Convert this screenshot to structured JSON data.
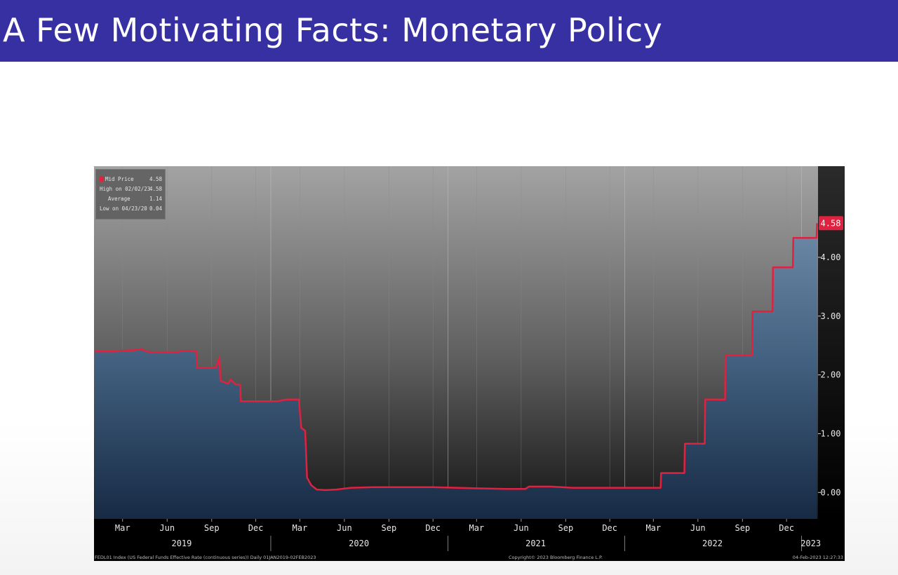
{
  "slide": {
    "title": "A Few Motivating Facts: Monetary Policy",
    "title_bar_color": "#3730a3"
  },
  "chart_data": {
    "type": "area",
    "series": [
      {
        "name": "Mid Price",
        "color": "#e0213f",
        "fill": "#4a6a8a",
        "points": [
          [
            "2019-01-02",
            2.4
          ],
          [
            "2019-02-15",
            2.4
          ],
          [
            "2019-03-01",
            2.41
          ],
          [
            "2019-03-25",
            2.42
          ],
          [
            "2019-04-01",
            2.43
          ],
          [
            "2019-04-10",
            2.44
          ],
          [
            "2019-04-15",
            2.41
          ],
          [
            "2019-05-01",
            2.38
          ],
          [
            "2019-05-20",
            2.38
          ],
          [
            "2019-06-01",
            2.39
          ],
          [
            "2019-06-20",
            2.38
          ],
          [
            "2019-07-01",
            2.41
          ],
          [
            "2019-07-31",
            2.4
          ],
          [
            "2019-08-02",
            2.12
          ],
          [
            "2019-08-30",
            2.12
          ],
          [
            "2019-09-10",
            2.13
          ],
          [
            "2019-09-17",
            2.3
          ],
          [
            "2019-09-19",
            1.9
          ],
          [
            "2019-10-05",
            1.85
          ],
          [
            "2019-10-10",
            1.92
          ],
          [
            "2019-10-20",
            1.84
          ],
          [
            "2019-10-30",
            1.83
          ],
          [
            "2019-10-31",
            1.55
          ],
          [
            "2019-12-01",
            1.55
          ],
          [
            "2019-12-31",
            1.55
          ],
          [
            "2020-01-15",
            1.55
          ],
          [
            "2020-02-01",
            1.58
          ],
          [
            "2020-02-28",
            1.58
          ],
          [
            "2020-03-04",
            1.1
          ],
          [
            "2020-03-12",
            1.05
          ],
          [
            "2020-03-16",
            0.25
          ],
          [
            "2020-03-25",
            0.12
          ],
          [
            "2020-04-05",
            0.05
          ],
          [
            "2020-04-23",
            0.04
          ],
          [
            "2020-05-15",
            0.05
          ],
          [
            "2020-06-15",
            0.08
          ],
          [
            "2020-08-01",
            0.09
          ],
          [
            "2020-12-01",
            0.09
          ],
          [
            "2021-03-01",
            0.07
          ],
          [
            "2021-05-01",
            0.06
          ],
          [
            "2021-06-10",
            0.06
          ],
          [
            "2021-06-17",
            0.1
          ],
          [
            "2021-08-01",
            0.1
          ],
          [
            "2021-09-15",
            0.08
          ],
          [
            "2022-01-01",
            0.08
          ],
          [
            "2022-03-16",
            0.08
          ],
          [
            "2022-03-17",
            0.33
          ],
          [
            "2022-05-04",
            0.33
          ],
          [
            "2022-05-05",
            0.83
          ],
          [
            "2022-06-15",
            0.83
          ],
          [
            "2022-06-16",
            1.58
          ],
          [
            "2022-07-27",
            1.58
          ],
          [
            "2022-07-28",
            2.33
          ],
          [
            "2022-09-21",
            2.33
          ],
          [
            "2022-09-22",
            3.08
          ],
          [
            "2022-11-02",
            3.08
          ],
          [
            "2022-11-03",
            3.83
          ],
          [
            "2022-12-14",
            3.83
          ],
          [
            "2022-12-15",
            4.33
          ],
          [
            "2023-02-01",
            4.33
          ],
          [
            "2023-02-02",
            4.58
          ]
        ]
      }
    ],
    "x_range": [
      "2019-01-01",
      "2023-02-04"
    ],
    "y_range": [
      -0.45,
      5.55
    ],
    "y_ticks": [
      "0.00",
      "1.00",
      "2.00",
      "3.00",
      "4.00"
    ],
    "last_value_label": "4.58",
    "x_ticks": [
      [
        "2019-03-01",
        "Mar"
      ],
      [
        "2019-06-01",
        "Jun"
      ],
      [
        "2019-09-01",
        "Sep"
      ],
      [
        "2019-12-01",
        "Dec"
      ],
      [
        "2020-03-01",
        "Mar"
      ],
      [
        "2020-06-01",
        "Jun"
      ],
      [
        "2020-09-01",
        "Sep"
      ],
      [
        "2020-12-01",
        "Dec"
      ],
      [
        "2021-03-01",
        "Mar"
      ],
      [
        "2021-06-01",
        "Jun"
      ],
      [
        "2021-09-01",
        "Sep"
      ],
      [
        "2021-12-01",
        "Dec"
      ],
      [
        "2022-03-01",
        "Mar"
      ],
      [
        "2022-06-01",
        "Jun"
      ],
      [
        "2022-09-01",
        "Sep"
      ],
      [
        "2022-12-01",
        "Dec"
      ]
    ],
    "year_labels": [
      [
        "2019-07-01",
        "2019"
      ],
      [
        "2020-07-01",
        "2020"
      ],
      [
        "2021-07-01",
        "2021"
      ],
      [
        "2022-07-01",
        "2022"
      ],
      [
        "2023-01-20",
        "2023"
      ]
    ],
    "year_separators": [
      "2020-01-01",
      "2021-01-01",
      "2022-01-01",
      "2023-01-01"
    ],
    "legend": {
      "rows": [
        {
          "label": "Mid Price",
          "value": "4.58"
        },
        {
          "label": "High on 02/02/23",
          "value": "4.58"
        },
        {
          "label": "Average",
          "value": "1.14"
        },
        {
          "label": "Low on 04/23/20",
          "value": "0.04"
        }
      ]
    },
    "footer": {
      "left": "FEDL01 Index (US Federal Funds Effective Rate (continuous series))  Daily 01JAN2019-02FEB2023",
      "center": "Copyright© 2023 Bloomberg Finance L.P.",
      "right": "04-Feb-2023 12:27:33"
    }
  }
}
